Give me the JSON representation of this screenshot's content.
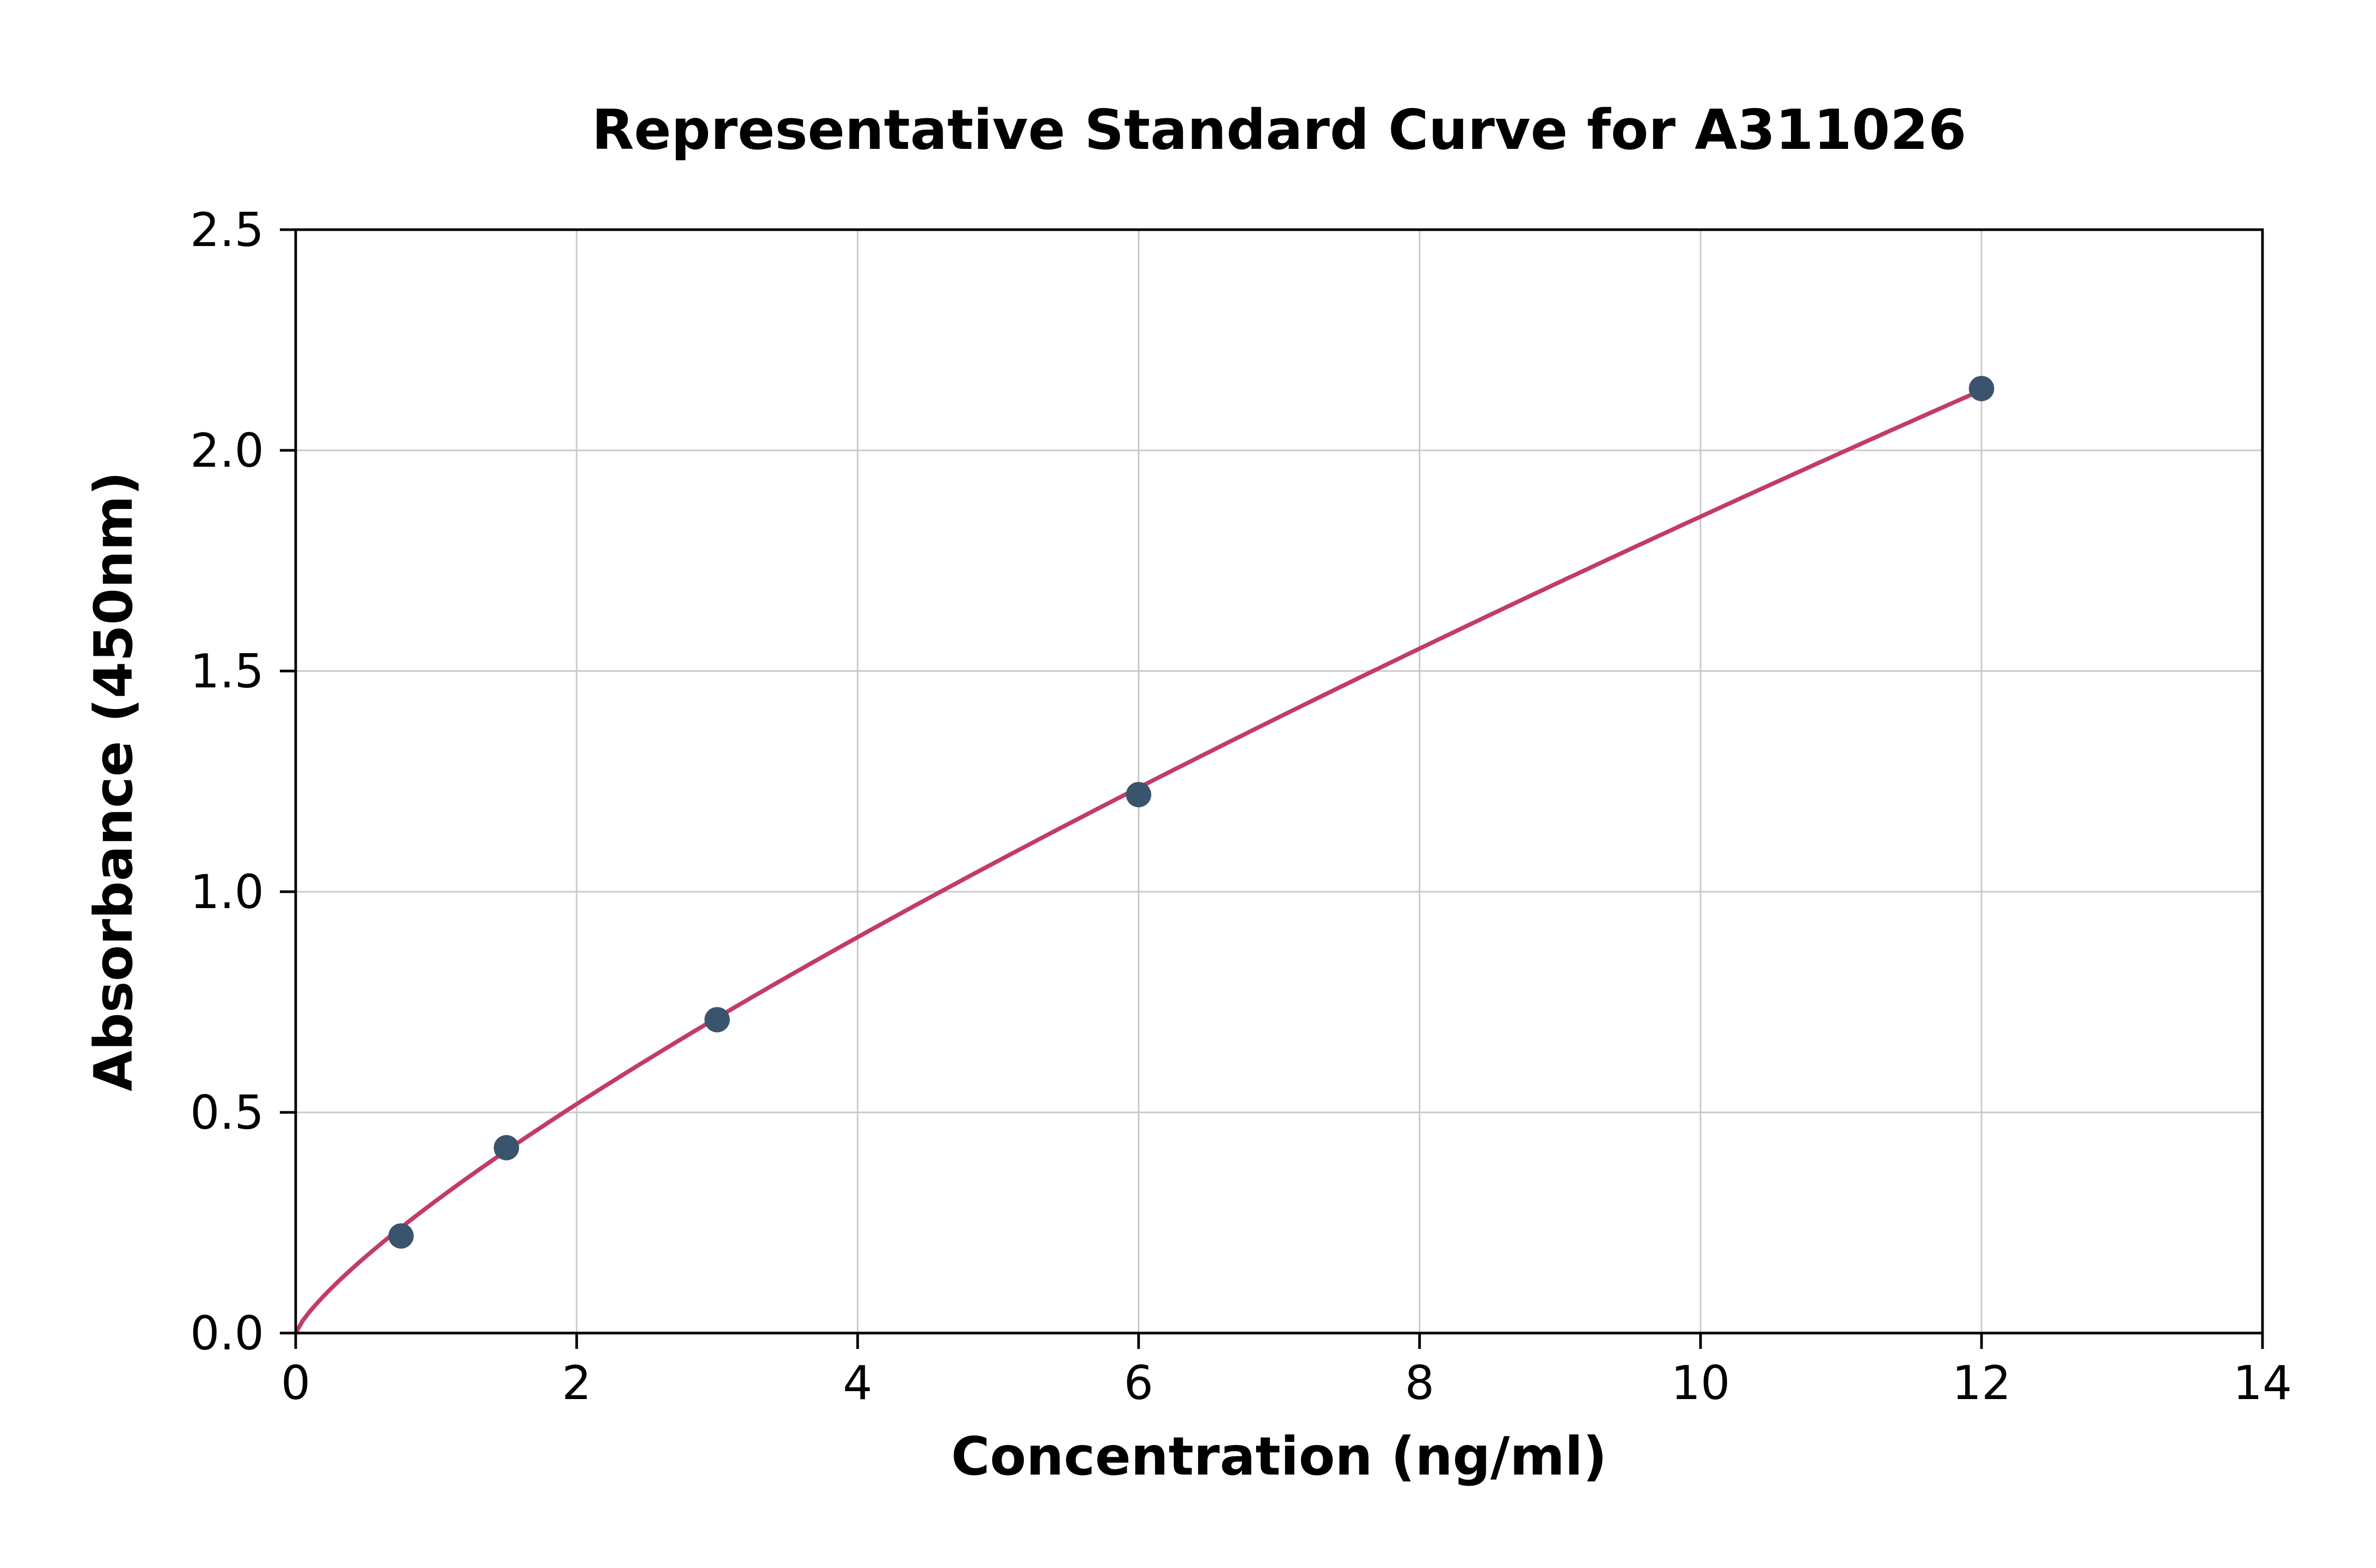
{
  "chart_data": {
    "type": "scatter",
    "title": "Representative Standard Curve for A311026",
    "xlabel": "Concentration (ng/ml)",
    "ylabel": "Absorbance (450nm)",
    "xlim": [
      0,
      14
    ],
    "ylim": [
      0,
      2.5
    ],
    "x_ticks": [
      0,
      2,
      4,
      6,
      8,
      10,
      12,
      14
    ],
    "y_ticks": [
      0.0,
      0.5,
      1.0,
      1.5,
      2.0,
      2.5
    ],
    "grid": true,
    "legend": "none",
    "points": [
      {
        "x": 0.75,
        "y": 0.22
      },
      {
        "x": 1.5,
        "y": 0.42
      },
      {
        "x": 3,
        "y": 0.71
      },
      {
        "x": 6,
        "y": 1.22
      },
      {
        "x": 12,
        "y": 2.14
      }
    ],
    "fit_curve": {
      "type": "power",
      "a": 0.3,
      "b": 0.79,
      "x_start": 0,
      "x_end": 12
    },
    "colors": {
      "curve": "#c23b6a",
      "points": "#3a546e",
      "grid": "#c9c9c9",
      "axis": "#000000",
      "background": "#ffffff"
    }
  }
}
